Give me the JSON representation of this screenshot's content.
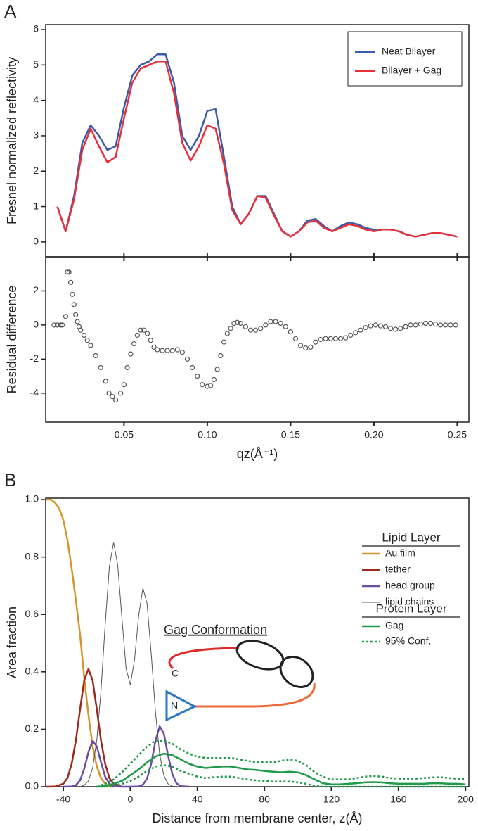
{
  "panels": [
    "A",
    "B"
  ],
  "diagram": {
    "title": "Gag Conformation",
    "c_label": "C",
    "n_label": "N"
  },
  "chart_data": [
    {
      "type": "line",
      "ylabel": "Fresnel normalized reflectivity",
      "xlim": [
        0.003,
        0.257
      ],
      "ylim": [
        -0.42,
        6.14
      ],
      "yticks": [
        0,
        1,
        2,
        3,
        4,
        5,
        6
      ],
      "legend": "upper right",
      "x": [
        0.01,
        0.015,
        0.02,
        0.025,
        0.03,
        0.035,
        0.04,
        0.045,
        0.05,
        0.055,
        0.06,
        0.065,
        0.07,
        0.075,
        0.08,
        0.085,
        0.09,
        0.095,
        0.1,
        0.105,
        0.11,
        0.115,
        0.12,
        0.125,
        0.13,
        0.135,
        0.14,
        0.145,
        0.15,
        0.155,
        0.16,
        0.165,
        0.17,
        0.175,
        0.18,
        0.185,
        0.19,
        0.195,
        0.2,
        0.205,
        0.21,
        0.215,
        0.22,
        0.225,
        0.23,
        0.235,
        0.24,
        0.245,
        0.25
      ],
      "series": [
        {
          "name": "Neat Bilayer",
          "color": "#3a5ba8",
          "values": [
            1.0,
            0.3,
            1.3,
            2.8,
            3.3,
            3.0,
            2.6,
            2.7,
            3.8,
            4.7,
            5.0,
            5.1,
            5.3,
            5.3,
            4.5,
            3.0,
            2.6,
            3.0,
            3.7,
            3.75,
            2.4,
            1.0,
            0.5,
            0.8,
            1.3,
            1.3,
            0.8,
            0.3,
            0.15,
            0.3,
            0.6,
            0.65,
            0.45,
            0.3,
            0.45,
            0.55,
            0.5,
            0.4,
            0.35,
            0.35,
            0.35,
            0.3,
            0.2,
            0.15,
            0.2,
            0.25,
            0.25,
            0.2,
            0.15
          ]
        },
        {
          "name": "Bilayer + Gag",
          "color": "#e8303a",
          "values": [
            1.0,
            0.3,
            1.2,
            2.6,
            3.2,
            2.7,
            2.25,
            2.4,
            3.5,
            4.5,
            4.9,
            5.0,
            5.1,
            5.1,
            4.2,
            2.8,
            2.3,
            2.7,
            3.3,
            3.2,
            2.2,
            0.9,
            0.5,
            0.8,
            1.3,
            1.25,
            0.75,
            0.3,
            0.15,
            0.3,
            0.55,
            0.6,
            0.4,
            0.3,
            0.4,
            0.5,
            0.45,
            0.35,
            0.3,
            0.35,
            0.35,
            0.3,
            0.2,
            0.15,
            0.2,
            0.25,
            0.25,
            0.2,
            0.15
          ]
        }
      ]
    },
    {
      "type": "scatter",
      "xlabel": "qz(Å⁻¹)",
      "ylabel": "Residual difference",
      "color": "#555555",
      "xlim": [
        0.003,
        0.257
      ],
      "ylim": [
        -5.7,
        4.0
      ],
      "yticks": [
        -4,
        -2,
        0,
        2
      ],
      "xticks": [
        {
          "value": 0.05,
          "label": "0.05"
        },
        {
          "value": 0.1,
          "label": "0.10"
        },
        {
          "value": 0.15,
          "label": "0.15"
        },
        {
          "value": 0.2,
          "label": "0.20"
        },
        {
          "value": 0.25,
          "label": "0.25"
        }
      ],
      "x": [
        0.008,
        0.01,
        0.012,
        0.013,
        0.015,
        0.016,
        0.017,
        0.018,
        0.019,
        0.02,
        0.021,
        0.022,
        0.023,
        0.024,
        0.026,
        0.028,
        0.03,
        0.033,
        0.036,
        0.039,
        0.041,
        0.043,
        0.045,
        0.048,
        0.05,
        0.052,
        0.054,
        0.056,
        0.058,
        0.06,
        0.062,
        0.064,
        0.066,
        0.068,
        0.07,
        0.073,
        0.076,
        0.079,
        0.082,
        0.085,
        0.088,
        0.091,
        0.094,
        0.097,
        0.1,
        0.102,
        0.104,
        0.106,
        0.108,
        0.11,
        0.112,
        0.114,
        0.116,
        0.118,
        0.12,
        0.123,
        0.126,
        0.129,
        0.132,
        0.135,
        0.138,
        0.141,
        0.144,
        0.147,
        0.15,
        0.153,
        0.156,
        0.159,
        0.162,
        0.165,
        0.168,
        0.171,
        0.174,
        0.177,
        0.18,
        0.183,
        0.186,
        0.189,
        0.192,
        0.195,
        0.198,
        0.201,
        0.204,
        0.207,
        0.21,
        0.213,
        0.216,
        0.219,
        0.222,
        0.225,
        0.228,
        0.231,
        0.234,
        0.237,
        0.24,
        0.243,
        0.246,
        0.249
      ],
      "values": [
        0,
        0,
        0,
        0,
        0.5,
        3.1,
        3.1,
        2.5,
        1.8,
        1.2,
        0.6,
        0.2,
        -0.1,
        -0.3,
        -0.6,
        -0.9,
        -1.2,
        -1.8,
        -2.5,
        -3.3,
        -4.0,
        -4.2,
        -4.4,
        -4.0,
        -3.5,
        -2.5,
        -1.7,
        -1.1,
        -0.6,
        -0.3,
        -0.3,
        -0.5,
        -0.9,
        -1.3,
        -1.45,
        -1.5,
        -1.5,
        -1.5,
        -1.45,
        -1.6,
        -2.0,
        -2.5,
        -3.0,
        -3.5,
        -3.6,
        -3.55,
        -3.2,
        -2.6,
        -1.8,
        -1.0,
        -0.5,
        -0.2,
        0.1,
        0.15,
        0.1,
        -0.1,
        -0.3,
        -0.3,
        -0.2,
        0.0,
        0.2,
        0.2,
        0.1,
        -0.1,
        -0.4,
        -0.8,
        -1.2,
        -1.35,
        -1.3,
        -1.0,
        -0.85,
        -0.8,
        -0.8,
        -0.8,
        -0.8,
        -0.75,
        -0.6,
        -0.45,
        -0.3,
        -0.15,
        -0.05,
        0.0,
        -0.05,
        -0.1,
        -0.2,
        -0.25,
        -0.2,
        -0.1,
        0.0,
        0.0,
        0.05,
        0.1,
        0.1,
        0.05,
        0.0,
        0.0,
        0.0,
        0.0
      ]
    },
    {
      "type": "line",
      "xlabel": "Distance from membrane center, z(Å)",
      "ylabel": "Area fraction",
      "xlim": [
        -50.5,
        202
      ],
      "ylim": [
        0,
        1.005
      ],
      "xticks": [
        -40,
        0,
        40,
        80,
        120,
        160,
        200
      ],
      "yticks": [
        {
          "value": 0,
          "label": "0.0"
        },
        {
          "value": 0.2,
          "label": "0.2"
        },
        {
          "value": 0.4,
          "label": "0.4"
        },
        {
          "value": 0.6,
          "label": "0.6"
        },
        {
          "value": 0.8,
          "label": "0.8"
        },
        {
          "value": 1,
          "label": "1.0"
        }
      ],
      "legend": "upper right",
      "legend_titles": [
        "Lipid Layer",
        "Protein Layer"
      ],
      "series": [
        {
          "name": "Au film",
          "color": "#d4952a",
          "x": [
            -50,
            -47.5,
            -45,
            -42.5,
            -40,
            -37.5,
            -35,
            -32.5,
            -30,
            -27.5,
            -25,
            -22.5,
            -20,
            -17.5,
            -15,
            -12.5,
            -10
          ],
          "values": [
            1.0,
            1.0,
            0.99,
            0.97,
            0.93,
            0.86,
            0.76,
            0.65,
            0.53,
            0.38,
            0.25,
            0.14,
            0.07,
            0.03,
            0.01,
            0.0,
            0.0
          ]
        },
        {
          "name": "tether",
          "color": "#9b2a1e",
          "x": [
            -50,
            -45,
            -40,
            -37.5,
            -35,
            -32.5,
            -30,
            -27.5,
            -25,
            -22.5,
            -20,
            -17.5,
            -15,
            -12.5,
            -10,
            -5
          ],
          "values": [
            0,
            0.0005,
            0.01,
            0.03,
            0.08,
            0.16,
            0.27,
            0.37,
            0.41,
            0.37,
            0.27,
            0.16,
            0.08,
            0.03,
            0.01,
            0
          ]
        },
        {
          "name": "head group",
          "color": "#6a4ca0",
          "x": [
            -40,
            -35,
            -32.5,
            -30,
            -27.5,
            -25,
            -22.5,
            -20,
            -17.5,
            -15,
            -12.5,
            -10,
            -5,
            0,
            5,
            7.5,
            10,
            12.5,
            15,
            17.5,
            20,
            22.5,
            25,
            27.5,
            30,
            35
          ],
          "values": [
            0,
            0.001,
            0.005,
            0.022,
            0.062,
            0.12,
            0.16,
            0.14,
            0.085,
            0.035,
            0.01,
            0.002,
            0,
            0,
            0.001,
            0.007,
            0.028,
            0.081,
            0.16,
            0.21,
            0.185,
            0.11,
            0.045,
            0.012,
            0.002,
            0
          ]
        },
        {
          "name": "lipid chains",
          "color": "#555555",
          "x": [
            -30,
            -27.5,
            -25,
            -22.5,
            -20,
            -17.5,
            -15,
            -12.5,
            -10,
            -7.5,
            -5,
            -2.5,
            0,
            2.5,
            5,
            7.5,
            10,
            12.5,
            15,
            17.5,
            20,
            22.5,
            25,
            30
          ],
          "values": [
            0,
            0.005,
            0.02,
            0.065,
            0.163,
            0.335,
            0.563,
            0.767,
            0.851,
            0.771,
            0.586,
            0.411,
            0.355,
            0.442,
            0.596,
            0.692,
            0.638,
            0.46,
            0.259,
            0.113,
            0.039,
            0.01,
            0.002,
            0
          ]
        },
        {
          "name": "Gag",
          "color": "#1e9a4a",
          "x": [
            -20,
            -15,
            -10,
            -5,
            0,
            5,
            10,
            15,
            20,
            25,
            30,
            35,
            40,
            45,
            50,
            55,
            60,
            65,
            70,
            75,
            80,
            85,
            90,
            95,
            100,
            105,
            110,
            115,
            120,
            125,
            130,
            135,
            140,
            145,
            150,
            155,
            160,
            165,
            170,
            175,
            180,
            185,
            190,
            195,
            200
          ],
          "values": [
            0,
            0.003,
            0.01,
            0.02,
            0.04,
            0.06,
            0.085,
            0.105,
            0.115,
            0.11,
            0.095,
            0.08,
            0.07,
            0.065,
            0.068,
            0.07,
            0.07,
            0.065,
            0.06,
            0.058,
            0.055,
            0.052,
            0.05,
            0.052,
            0.05,
            0.04,
            0.025,
            0.012,
            0.008,
            0.008,
            0.01,
            0.012,
            0.015,
            0.016,
            0.015,
            0.012,
            0.01,
            0.01,
            0.01,
            0.01,
            0.012,
            0.012,
            0.01,
            0.01,
            0.008
          ]
        },
        {
          "name": "95% Conf.",
          "color": "#1e9a4a",
          "dashed": true,
          "x": [
            -20,
            -15,
            -10,
            -5,
            0,
            5,
            10,
            15,
            20,
            25,
            30,
            35,
            40,
            45,
            50,
            55,
            60,
            65,
            70,
            75,
            80,
            85,
            90,
            95,
            100,
            105,
            110,
            115,
            120,
            125,
            130,
            135,
            140,
            145,
            150,
            155,
            160,
            165,
            170,
            175,
            180,
            185,
            190,
            195,
            200
          ],
          "upper": [
            0,
            0.01,
            0.025,
            0.05,
            0.08,
            0.11,
            0.14,
            0.16,
            0.16,
            0.15,
            0.13,
            0.115,
            0.105,
            0.1,
            0.1,
            0.1,
            0.1,
            0.095,
            0.09,
            0.085,
            0.085,
            0.085,
            0.09,
            0.095,
            0.09,
            0.075,
            0.05,
            0.035,
            0.025,
            0.025,
            0.025,
            0.03,
            0.035,
            0.037,
            0.035,
            0.03,
            0.028,
            0.028,
            0.028,
            0.03,
            0.032,
            0.033,
            0.03,
            0.028,
            0.027
          ],
          "lower": [
            0,
            0,
            0.005,
            0.01,
            0.02,
            0.035,
            0.055,
            0.07,
            0.075,
            0.07,
            0.055,
            0.045,
            0.035,
            0.03,
            0.033,
            0.035,
            0.035,
            0.03,
            0.025,
            0.022,
            0.02,
            0.018,
            0.018,
            0.018,
            0.015,
            0.01,
            0.003,
            0,
            0,
            0,
            0,
            0,
            0,
            0,
            0,
            0,
            0,
            0,
            0,
            0,
            0,
            0,
            0,
            0,
            0
          ]
        }
      ]
    }
  ]
}
